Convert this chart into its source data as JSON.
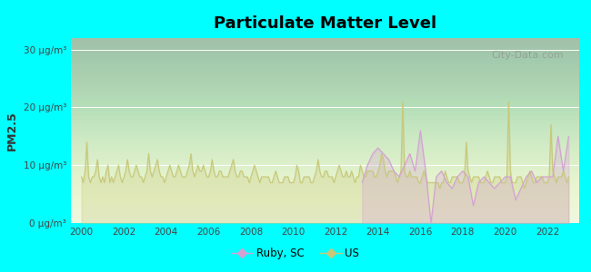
{
  "title": "Particulate Matter Level",
  "ylabel": "PM2.5",
  "xlabel": "",
  "background_outer": "#00FFFF",
  "background_inner_top": "#e8f5e9",
  "background_inner_bottom": "#f0f8e8",
  "ylim": [
    0,
    32
  ],
  "yticks": [
    0,
    10,
    20,
    30
  ],
  "ytick_labels": [
    "0 μg/m³",
    "10 μg/m³",
    "20 μg/m³",
    "30 μg/m³"
  ],
  "xtick_years": [
    2000,
    2002,
    2004,
    2006,
    2008,
    2010,
    2012,
    2014,
    2016,
    2018,
    2020,
    2022
  ],
  "xlim_start": 1999.5,
  "xlim_end": 2023.5,
  "ruby_color": "#d4a0d4",
  "us_color": "#c8c87a",
  "ruby_fill": "#e8d8f0",
  "us_fill": "#d8e8b0",
  "legend_ruby_label": "Ruby, SC",
  "legend_us_label": "US",
  "watermark": "City-Data.com",
  "us_data": {
    "years": [
      2000.0,
      2000.083,
      2000.167,
      2000.25,
      2000.333,
      2000.417,
      2000.5,
      2000.583,
      2000.667,
      2000.75,
      2000.833,
      2000.917,
      2001.0,
      2001.083,
      2001.167,
      2001.25,
      2001.333,
      2001.417,
      2001.5,
      2001.583,
      2001.667,
      2001.75,
      2001.833,
      2001.917,
      2002.0,
      2002.083,
      2002.167,
      2002.25,
      2002.333,
      2002.417,
      2002.5,
      2002.583,
      2002.667,
      2002.75,
      2002.833,
      2002.917,
      2003.0,
      2003.083,
      2003.167,
      2003.25,
      2003.333,
      2003.417,
      2003.5,
      2003.583,
      2003.667,
      2003.75,
      2003.833,
      2003.917,
      2004.0,
      2004.083,
      2004.167,
      2004.25,
      2004.333,
      2004.417,
      2004.5,
      2004.583,
      2004.667,
      2004.75,
      2004.833,
      2004.917,
      2005.0,
      2005.083,
      2005.167,
      2005.25,
      2005.333,
      2005.417,
      2005.5,
      2005.583,
      2005.667,
      2005.75,
      2005.833,
      2005.917,
      2006.0,
      2006.083,
      2006.167,
      2006.25,
      2006.333,
      2006.417,
      2006.5,
      2006.583,
      2006.667,
      2006.75,
      2006.833,
      2006.917,
      2007.0,
      2007.083,
      2007.167,
      2007.25,
      2007.333,
      2007.417,
      2007.5,
      2007.583,
      2007.667,
      2007.75,
      2007.833,
      2007.917,
      2008.0,
      2008.083,
      2008.167,
      2008.25,
      2008.333,
      2008.417,
      2008.5,
      2008.583,
      2008.667,
      2008.75,
      2008.833,
      2008.917,
      2009.0,
      2009.083,
      2009.167,
      2009.25,
      2009.333,
      2009.417,
      2009.5,
      2009.583,
      2009.667,
      2009.75,
      2009.833,
      2009.917,
      2010.0,
      2010.083,
      2010.167,
      2010.25,
      2010.333,
      2010.417,
      2010.5,
      2010.583,
      2010.667,
      2010.75,
      2010.833,
      2010.917,
      2011.0,
      2011.083,
      2011.167,
      2011.25,
      2011.333,
      2011.417,
      2011.5,
      2011.583,
      2011.667,
      2011.75,
      2011.833,
      2011.917,
      2012.0,
      2012.083,
      2012.167,
      2012.25,
      2012.333,
      2012.417,
      2012.5,
      2012.583,
      2012.667,
      2012.75,
      2012.833,
      2012.917,
      2013.0,
      2013.083,
      2013.167,
      2013.25,
      2013.333,
      2013.417,
      2013.5,
      2013.583,
      2013.667,
      2013.75,
      2013.833,
      2013.917,
      2014.0,
      2014.083,
      2014.167,
      2014.25,
      2014.333,
      2014.417,
      2014.5,
      2014.583,
      2014.667,
      2014.75,
      2014.833,
      2014.917,
      2015.0,
      2015.083,
      2015.167,
      2015.25,
      2015.333,
      2015.417,
      2015.5,
      2015.583,
      2015.667,
      2015.75,
      2015.833,
      2015.917,
      2016.0,
      2016.083,
      2016.167,
      2016.25,
      2016.333,
      2016.417,
      2016.5,
      2016.583,
      2016.667,
      2016.75,
      2016.833,
      2016.917,
      2017.0,
      2017.083,
      2017.167,
      2017.25,
      2017.333,
      2017.417,
      2017.5,
      2017.583,
      2017.667,
      2017.75,
      2017.833,
      2017.917,
      2018.0,
      2018.083,
      2018.167,
      2018.25,
      2018.333,
      2018.417,
      2018.5,
      2018.583,
      2018.667,
      2018.75,
      2018.833,
      2018.917,
      2019.0,
      2019.083,
      2019.167,
      2019.25,
      2019.333,
      2019.417,
      2019.5,
      2019.583,
      2019.667,
      2019.75,
      2019.833,
      2019.917,
      2020.0,
      2020.083,
      2020.167,
      2020.25,
      2020.333,
      2020.417,
      2020.5,
      2020.583,
      2020.667,
      2020.75,
      2020.833,
      2020.917,
      2021.0,
      2021.083,
      2021.167,
      2021.25,
      2021.333,
      2021.417,
      2021.5,
      2021.583,
      2021.667,
      2021.75,
      2021.833,
      2021.917,
      2022.0,
      2022.083,
      2022.167,
      2022.25,
      2022.333,
      2022.417,
      2022.5,
      2022.583,
      2022.667,
      2022.75,
      2022.833,
      2022.917,
      2023.0
    ],
    "values": [
      8,
      7,
      9,
      14,
      8,
      7,
      8,
      8,
      9,
      11,
      8,
      7,
      8,
      7,
      9,
      10,
      7,
      8,
      7,
      8,
      9,
      10,
      8,
      7,
      8,
      9,
      11,
      9,
      8,
      8,
      9,
      10,
      9,
      8,
      8,
      7,
      8,
      9,
      12,
      9,
      8,
      9,
      10,
      11,
      9,
      8,
      8,
      7,
      8,
      9,
      10,
      9,
      8,
      8,
      9,
      10,
      9,
      8,
      8,
      8,
      9,
      10,
      12,
      9,
      8,
      9,
      10,
      9,
      9,
      10,
      9,
      8,
      8,
      9,
      11,
      9,
      8,
      8,
      9,
      9,
      8,
      8,
      8,
      8,
      9,
      10,
      11,
      9,
      8,
      8,
      9,
      9,
      8,
      8,
      8,
      7,
      8,
      9,
      10,
      9,
      8,
      7,
      8,
      8,
      8,
      8,
      8,
      7,
      7,
      8,
      9,
      8,
      7,
      7,
      7,
      8,
      8,
      8,
      7,
      7,
      7,
      8,
      10,
      9,
      7,
      7,
      8,
      8,
      8,
      8,
      7,
      7,
      8,
      9,
      11,
      9,
      8,
      8,
      9,
      9,
      8,
      8,
      8,
      7,
      8,
      9,
      10,
      9,
      8,
      8,
      9,
      8,
      8,
      9,
      8,
      7,
      8,
      8,
      10,
      9,
      8,
      8,
      9,
      9,
      9,
      9,
      8,
      8,
      9,
      10,
      12,
      11,
      9,
      8,
      9,
      9,
      9,
      9,
      8,
      7,
      8,
      9,
      21,
      9,
      8,
      8,
      9,
      8,
      8,
      8,
      8,
      7,
      7,
      8,
      9,
      8,
      7,
      7,
      7,
      7,
      7,
      7,
      7,
      6,
      7,
      7,
      9,
      8,
      7,
      7,
      8,
      8,
      8,
      8,
      7,
      7,
      7,
      8,
      14,
      9,
      8,
      7,
      8,
      8,
      8,
      8,
      7,
      7,
      7,
      8,
      9,
      8,
      7,
      7,
      8,
      8,
      8,
      8,
      7,
      7,
      7,
      8,
      21,
      9,
      7,
      7,
      7,
      8,
      8,
      8,
      7,
      6,
      7,
      8,
      9,
      8,
      7,
      7,
      8,
      8,
      8,
      8,
      7,
      7,
      7,
      8,
      17,
      9,
      8,
      7,
      8,
      8,
      8,
      9,
      8,
      7,
      8
    ]
  },
  "ruby_data": {
    "years": [
      2013.25,
      2013.5,
      2013.75,
      2014.0,
      2014.25,
      2014.5,
      2014.75,
      2015.0,
      2015.25,
      2015.5,
      2015.75,
      2016.0,
      2016.25,
      2016.5,
      2016.75,
      2017.0,
      2017.25,
      2017.5,
      2017.75,
      2018.0,
      2018.25,
      2018.5,
      2018.75,
      2019.0,
      2019.25,
      2019.5,
      2019.75,
      2020.0,
      2020.25,
      2020.5,
      2020.75,
      2021.0,
      2021.25,
      2021.5,
      2021.75,
      2022.0,
      2022.25,
      2022.5,
      2022.75,
      2023.0
    ],
    "values": [
      7,
      10,
      12,
      13,
      12,
      11,
      9,
      8,
      10,
      12,
      9,
      16,
      9,
      0,
      8,
      9,
      7,
      6,
      8,
      9,
      8,
      3,
      7,
      8,
      7,
      6,
      7,
      8,
      8,
      4,
      6,
      8,
      9,
      7,
      8,
      8,
      8,
      15,
      9,
      15
    ]
  }
}
